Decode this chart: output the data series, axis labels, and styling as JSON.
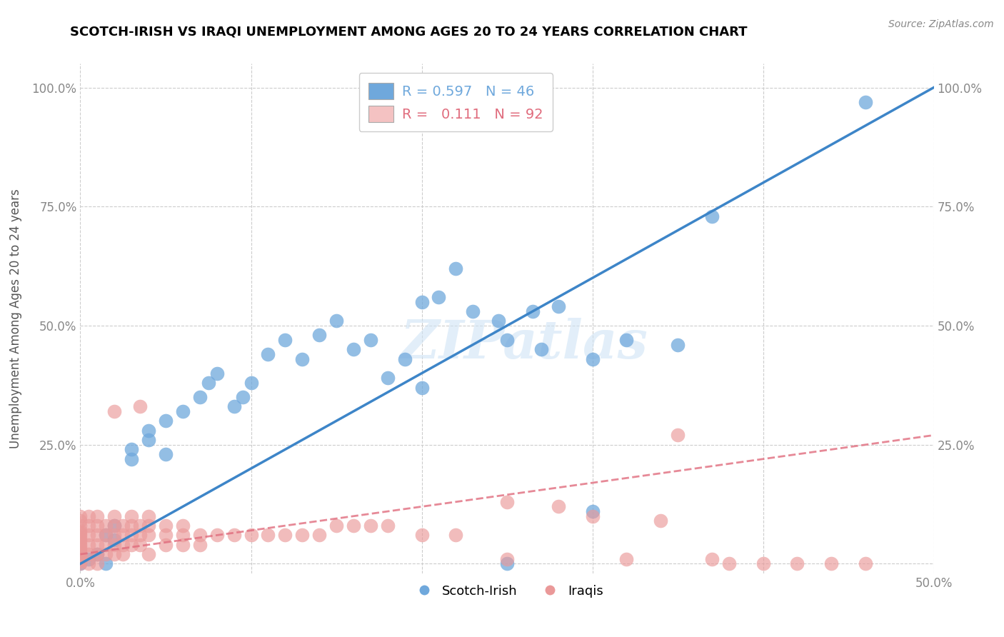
{
  "title": "SCOTCH-IRISH VS IRAQI UNEMPLOYMENT AMONG AGES 20 TO 24 YEARS CORRELATION CHART",
  "source": "Source: ZipAtlas.com",
  "ylabel": "Unemployment Among Ages 20 to 24 years",
  "xlim": [
    0.0,
    0.5
  ],
  "ylim": [
    -0.02,
    1.05
  ],
  "xticks": [
    0.0,
    0.1,
    0.2,
    0.3,
    0.4,
    0.5
  ],
  "xticklabels": [
    "0.0%",
    "",
    "",
    "",
    "",
    "50.0%"
  ],
  "yticks": [
    0.0,
    0.25,
    0.5,
    0.75,
    1.0
  ],
  "yticklabels": [
    "",
    "25.0%",
    "50.0%",
    "75.0%",
    "100.0%"
  ],
  "watermark": "ZIPatlas",
  "scotch_irish_color": "#6fa8dc",
  "iraqi_color": "#ea9999",
  "trendline_scotch_color": "#3d85c8",
  "trendline_iraqi_color": "#e06c7d",
  "scotch_irish_line": [
    0.0,
    0.0,
    0.5,
    1.0
  ],
  "iraqi_line": [
    0.0,
    0.02,
    0.5,
    0.27
  ],
  "scotch_irish_points": [
    [
      0.0,
      0.0
    ],
    [
      0.005,
      0.01
    ],
    [
      0.01,
      0.02
    ],
    [
      0.015,
      0.06
    ],
    [
      0.02,
      0.05
    ],
    [
      0.02,
      0.08
    ],
    [
      0.03,
      0.22
    ],
    [
      0.03,
      0.24
    ],
    [
      0.04,
      0.26
    ],
    [
      0.04,
      0.28
    ],
    [
      0.05,
      0.3
    ],
    [
      0.05,
      0.23
    ],
    [
      0.06,
      0.32
    ],
    [
      0.07,
      0.35
    ],
    [
      0.075,
      0.38
    ],
    [
      0.08,
      0.4
    ],
    [
      0.09,
      0.33
    ],
    [
      0.095,
      0.35
    ],
    [
      0.1,
      0.38
    ],
    [
      0.11,
      0.44
    ],
    [
      0.12,
      0.47
    ],
    [
      0.13,
      0.43
    ],
    [
      0.14,
      0.48
    ],
    [
      0.15,
      0.51
    ],
    [
      0.16,
      0.45
    ],
    [
      0.17,
      0.47
    ],
    [
      0.18,
      0.39
    ],
    [
      0.19,
      0.43
    ],
    [
      0.2,
      0.37
    ],
    [
      0.21,
      0.56
    ],
    [
      0.22,
      0.62
    ],
    [
      0.23,
      0.53
    ],
    [
      0.245,
      0.51
    ],
    [
      0.25,
      0.47
    ],
    [
      0.265,
      0.53
    ],
    [
      0.27,
      0.45
    ],
    [
      0.28,
      0.54
    ],
    [
      0.3,
      0.43
    ],
    [
      0.32,
      0.47
    ],
    [
      0.015,
      0.0
    ],
    [
      0.25,
      0.0
    ],
    [
      0.37,
      0.73
    ],
    [
      0.46,
      0.97
    ],
    [
      0.3,
      0.11
    ],
    [
      0.35,
      0.46
    ],
    [
      0.2,
      0.55
    ]
  ],
  "iraqi_points": [
    [
      0.0,
      0.0
    ],
    [
      0.0,
      0.005
    ],
    [
      0.0,
      0.01
    ],
    [
      0.0,
      0.015
    ],
    [
      0.0,
      0.02
    ],
    [
      0.0,
      0.025
    ],
    [
      0.0,
      0.03
    ],
    [
      0.0,
      0.035
    ],
    [
      0.0,
      0.04
    ],
    [
      0.0,
      0.045
    ],
    [
      0.0,
      0.05
    ],
    [
      0.0,
      0.055
    ],
    [
      0.0,
      0.06
    ],
    [
      0.0,
      0.065
    ],
    [
      0.0,
      0.07
    ],
    [
      0.0,
      0.08
    ],
    [
      0.0,
      0.09
    ],
    [
      0.0,
      0.1
    ],
    [
      0.005,
      0.0
    ],
    [
      0.005,
      0.02
    ],
    [
      0.005,
      0.04
    ],
    [
      0.005,
      0.06
    ],
    [
      0.005,
      0.08
    ],
    [
      0.005,
      0.1
    ],
    [
      0.01,
      0.0
    ],
    [
      0.01,
      0.02
    ],
    [
      0.01,
      0.04
    ],
    [
      0.01,
      0.06
    ],
    [
      0.01,
      0.08
    ],
    [
      0.01,
      0.1
    ],
    [
      0.015,
      0.02
    ],
    [
      0.015,
      0.04
    ],
    [
      0.015,
      0.06
    ],
    [
      0.015,
      0.08
    ],
    [
      0.02,
      0.02
    ],
    [
      0.02,
      0.04
    ],
    [
      0.02,
      0.06
    ],
    [
      0.02,
      0.08
    ],
    [
      0.02,
      0.1
    ],
    [
      0.025,
      0.02
    ],
    [
      0.025,
      0.04
    ],
    [
      0.025,
      0.06
    ],
    [
      0.025,
      0.08
    ],
    [
      0.03,
      0.04
    ],
    [
      0.03,
      0.06
    ],
    [
      0.03,
      0.08
    ],
    [
      0.03,
      0.1
    ],
    [
      0.035,
      0.04
    ],
    [
      0.035,
      0.06
    ],
    [
      0.035,
      0.08
    ],
    [
      0.04,
      0.02
    ],
    [
      0.04,
      0.06
    ],
    [
      0.04,
      0.08
    ],
    [
      0.04,
      0.1
    ],
    [
      0.05,
      0.04
    ],
    [
      0.05,
      0.06
    ],
    [
      0.05,
      0.08
    ],
    [
      0.06,
      0.04
    ],
    [
      0.06,
      0.06
    ],
    [
      0.06,
      0.08
    ],
    [
      0.07,
      0.04
    ],
    [
      0.07,
      0.06
    ],
    [
      0.08,
      0.06
    ],
    [
      0.09,
      0.06
    ],
    [
      0.1,
      0.06
    ],
    [
      0.11,
      0.06
    ],
    [
      0.12,
      0.06
    ],
    [
      0.13,
      0.06
    ],
    [
      0.14,
      0.06
    ],
    [
      0.15,
      0.08
    ],
    [
      0.16,
      0.08
    ],
    [
      0.17,
      0.08
    ],
    [
      0.18,
      0.08
    ],
    [
      0.2,
      0.06
    ],
    [
      0.22,
      0.06
    ],
    [
      0.035,
      0.33
    ],
    [
      0.02,
      0.32
    ],
    [
      0.35,
      0.27
    ],
    [
      0.25,
      0.01
    ],
    [
      0.32,
      0.01
    ],
    [
      0.37,
      0.01
    ],
    [
      0.38,
      0.0
    ],
    [
      0.4,
      0.0
    ],
    [
      0.42,
      0.0
    ],
    [
      0.44,
      0.0
    ],
    [
      0.46,
      0.0
    ],
    [
      0.25,
      0.13
    ],
    [
      0.28,
      0.12
    ],
    [
      0.3,
      0.1
    ],
    [
      0.34,
      0.09
    ]
  ]
}
